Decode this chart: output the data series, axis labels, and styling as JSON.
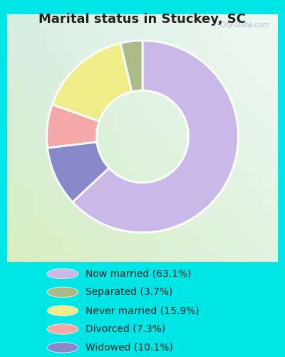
{
  "title": "Marital status in Stuckey, SC",
  "slices": [
    63.1,
    10.1,
    7.3,
    15.9,
    3.7
  ],
  "slice_order_labels": [
    "Now married",
    "Widowed",
    "Divorced",
    "Never married",
    "Separated"
  ],
  "colors": [
    "#C9B8E8",
    "#8888CC",
    "#F4A8A8",
    "#EEED88",
    "#AABB88"
  ],
  "legend_labels": [
    "Now married (63.1%)",
    "Separated (3.7%)",
    "Never married (15.9%)",
    "Divorced (7.3%)",
    "Widowed (10.1%)"
  ],
  "legend_colors": [
    "#C9B8E8",
    "#AABB88",
    "#EEED88",
    "#F4A8A8",
    "#8888CC"
  ],
  "bg_cyan": "#00E5E5",
  "chart_bg_tl": "#D4EEE0",
  "chart_bg_tr": "#F0F8F4",
  "chart_bg_bl": "#D8EEC0",
  "chart_bg_br": "#E8F4E0",
  "watermark": "City-Data.com",
  "title_fontsize": 13,
  "legend_fontsize": 10,
  "donut_width": 0.52,
  "startangle": 90
}
